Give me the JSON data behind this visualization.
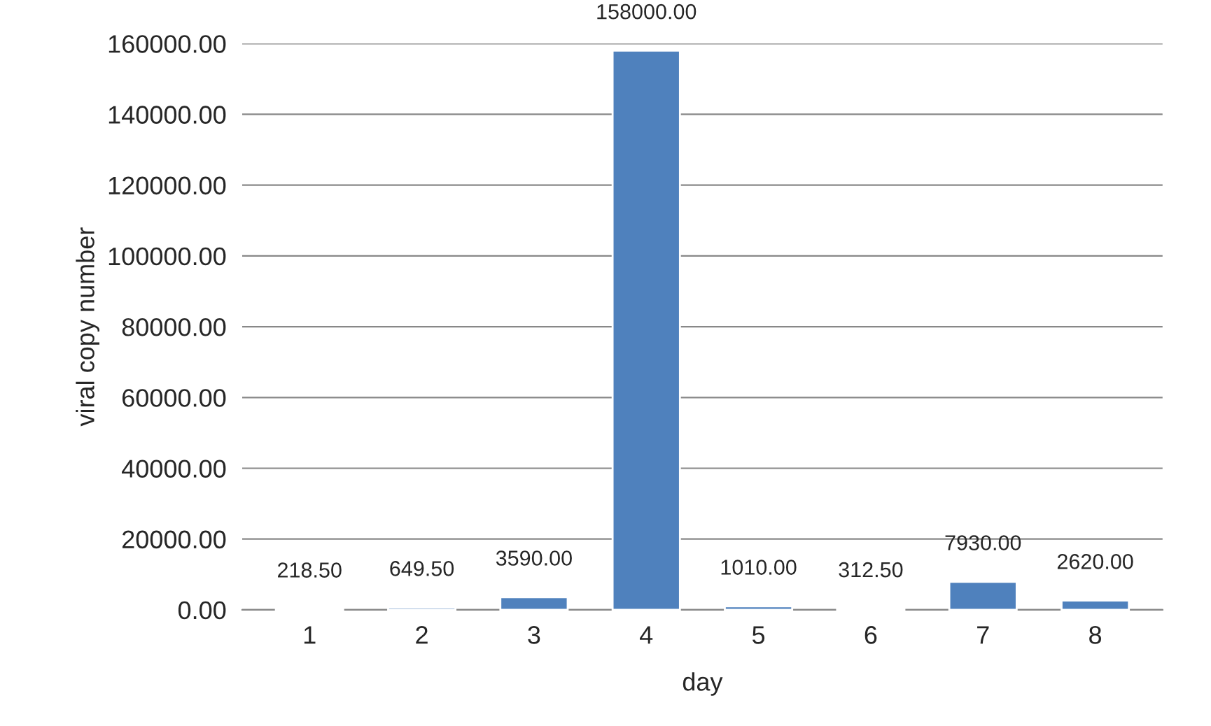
{
  "chart_data": {
    "type": "bar",
    "xlabel": "day",
    "ylabel": "viral copy number",
    "categories": [
      "1",
      "2",
      "3",
      "4",
      "5",
      "6",
      "7",
      "8"
    ],
    "values": [
      218.5,
      649.5,
      3590,
      158000,
      1010,
      312.5,
      7930,
      2620
    ],
    "value_labels": [
      "218.50",
      "649.50",
      "3590.00",
      "158000.00",
      "1010.00",
      "312.50",
      "7930.00",
      "2620.00"
    ],
    "color": "#4f81bd",
    "ylim": [
      0,
      160000
    ],
    "yticks": [
      {
        "value": 0,
        "label": "0.00"
      },
      {
        "value": 20000,
        "label": "20000.00"
      },
      {
        "value": 40000,
        "label": "40000.00"
      },
      {
        "value": 60000,
        "label": "60000.00"
      },
      {
        "value": 80000,
        "label": "80000.00"
      },
      {
        "value": 100000,
        "label": "100000.00"
      },
      {
        "value": 120000,
        "label": "120000.00"
      },
      {
        "value": 140000,
        "label": "140000.00"
      },
      {
        "value": 160000,
        "label": "160000.00"
      }
    ],
    "grid": "y"
  }
}
